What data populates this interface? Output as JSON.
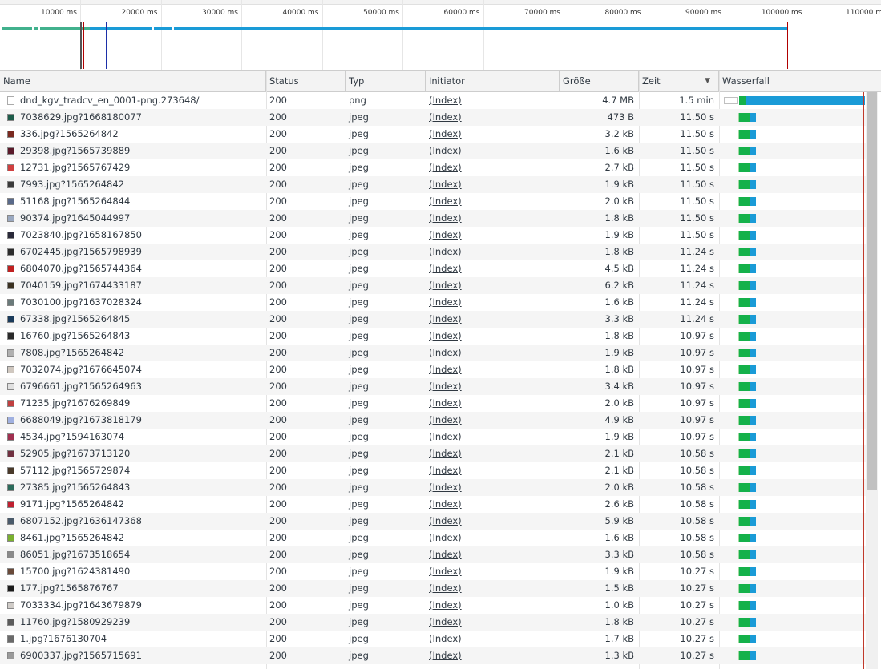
{
  "overview": {
    "ticks": [
      "10000 ms",
      "20000 ms",
      "30000 ms",
      "40000 ms",
      "50000 ms",
      "60000 ms",
      "70000 ms",
      "80000 ms",
      "90000 ms",
      "100000 ms",
      "110000 m"
    ]
  },
  "columns": {
    "name": "Name",
    "status": "Status",
    "type": "Typ",
    "initiator": "Initiator",
    "size": "Größe",
    "time": "Zeit",
    "waterfall": "Wasserfall",
    "sort_indicator": "▼"
  },
  "rows": [
    {
      "name": "dnd_kgv_tradcv_en_0001-png.273648/",
      "status": "200",
      "type": "png",
      "initiator": "(Index)",
      "size": "4.7 MB",
      "time": "1.5 min",
      "thumb": "#ffffff"
    },
    {
      "name": "7038629.jpg?1668180077",
      "status": "200",
      "type": "jpeg",
      "initiator": "(Index)",
      "size": "473 B",
      "time": "11.50 s",
      "thumb": "#1d5c4a"
    },
    {
      "name": "336.jpg?1565264842",
      "status": "200",
      "type": "jpeg",
      "initiator": "(Index)",
      "size": "3.2 kB",
      "time": "11.50 s",
      "thumb": "#7a2a20"
    },
    {
      "name": "29398.jpg?1565739889",
      "status": "200",
      "type": "jpeg",
      "initiator": "(Index)",
      "size": "1.6 kB",
      "time": "11.50 s",
      "thumb": "#5a1a2a"
    },
    {
      "name": "12731.jpg?1565767429",
      "status": "200",
      "type": "jpeg",
      "initiator": "(Index)",
      "size": "2.7 kB",
      "time": "11.50 s",
      "thumb": "#d04040"
    },
    {
      "name": "7993.jpg?1565264842",
      "status": "200",
      "type": "jpeg",
      "initiator": "(Index)",
      "size": "1.9 kB",
      "time": "11.50 s",
      "thumb": "#3a3a3a"
    },
    {
      "name": "51168.jpg?1565264844",
      "status": "200",
      "type": "jpeg",
      "initiator": "(Index)",
      "size": "2.0 kB",
      "time": "11.50 s",
      "thumb": "#5a6a8a"
    },
    {
      "name": "90374.jpg?1645044997",
      "status": "200",
      "type": "jpeg",
      "initiator": "(Index)",
      "size": "1.8 kB",
      "time": "11.50 s",
      "thumb": "#9aa8c0"
    },
    {
      "name": "7023840.jpg?1658167850",
      "status": "200",
      "type": "jpeg",
      "initiator": "(Index)",
      "size": "1.9 kB",
      "time": "11.50 s",
      "thumb": "#2a2a3a"
    },
    {
      "name": "6702445.jpg?1565798939",
      "status": "200",
      "type": "jpeg",
      "initiator": "(Index)",
      "size": "1.8 kB",
      "time": "11.24 s",
      "thumb": "#2a2a2a"
    },
    {
      "name": "6804070.jpg?1565744364",
      "status": "200",
      "type": "jpeg",
      "initiator": "(Index)",
      "size": "4.5 kB",
      "time": "11.24 s",
      "thumb": "#c02020"
    },
    {
      "name": "7040159.jpg?1674433187",
      "status": "200",
      "type": "jpeg",
      "initiator": "(Index)",
      "size": "6.2 kB",
      "time": "11.24 s",
      "thumb": "#3a3020"
    },
    {
      "name": "7030100.jpg?1637028324",
      "status": "200",
      "type": "jpeg",
      "initiator": "(Index)",
      "size": "1.6 kB",
      "time": "11.24 s",
      "thumb": "#6a7a7a"
    },
    {
      "name": "67338.jpg?1565264845",
      "status": "200",
      "type": "jpeg",
      "initiator": "(Index)",
      "size": "3.3 kB",
      "time": "11.24 s",
      "thumb": "#1a3a5a"
    },
    {
      "name": "16760.jpg?1565264843",
      "status": "200",
      "type": "jpeg",
      "initiator": "(Index)",
      "size": "1.8 kB",
      "time": "10.97 s",
      "thumb": "#2a2a2a"
    },
    {
      "name": "7808.jpg?1565264842",
      "status": "200",
      "type": "jpeg",
      "initiator": "(Index)",
      "size": "1.9 kB",
      "time": "10.97 s",
      "thumb": "#b0b0b0"
    },
    {
      "name": "7032074.jpg?1676645074",
      "status": "200",
      "type": "jpeg",
      "initiator": "(Index)",
      "size": "1.8 kB",
      "time": "10.97 s",
      "thumb": "#d0c8c0"
    },
    {
      "name": "6796661.jpg?1565264963",
      "status": "200",
      "type": "jpeg",
      "initiator": "(Index)",
      "size": "3.4 kB",
      "time": "10.97 s",
      "thumb": "#e0e0e0"
    },
    {
      "name": "71235.jpg?1676269849",
      "status": "200",
      "type": "jpeg",
      "initiator": "(Index)",
      "size": "2.0 kB",
      "time": "10.97 s",
      "thumb": "#c04040"
    },
    {
      "name": "6688049.jpg?1673818179",
      "status": "200",
      "type": "jpeg",
      "initiator": "(Index)",
      "size": "4.9 kB",
      "time": "10.97 s",
      "thumb": "#a0b0e0"
    },
    {
      "name": "4534.jpg?1594163074",
      "status": "200",
      "type": "jpeg",
      "initiator": "(Index)",
      "size": "1.9 kB",
      "time": "10.97 s",
      "thumb": "#a03050"
    },
    {
      "name": "52905.jpg?1673713120",
      "status": "200",
      "type": "jpeg",
      "initiator": "(Index)",
      "size": "2.1 kB",
      "time": "10.58 s",
      "thumb": "#703040"
    },
    {
      "name": "57112.jpg?1565729874",
      "status": "200",
      "type": "jpeg",
      "initiator": "(Index)",
      "size": "2.1 kB",
      "time": "10.58 s",
      "thumb": "#4a3a2a"
    },
    {
      "name": "27385.jpg?1565264843",
      "status": "200",
      "type": "jpeg",
      "initiator": "(Index)",
      "size": "2.0 kB",
      "time": "10.58 s",
      "thumb": "#2a6a5a"
    },
    {
      "name": "9171.jpg?1565264842",
      "status": "200",
      "type": "jpeg",
      "initiator": "(Index)",
      "size": "2.6 kB",
      "time": "10.58 s",
      "thumb": "#c02030"
    },
    {
      "name": "6807152.jpg?1636147368",
      "status": "200",
      "type": "jpeg",
      "initiator": "(Index)",
      "size": "5.9 kB",
      "time": "10.58 s",
      "thumb": "#4a5a6a"
    },
    {
      "name": "8461.jpg?1565264842",
      "status": "200",
      "type": "jpeg",
      "initiator": "(Index)",
      "size": "1.6 kB",
      "time": "10.58 s",
      "thumb": "#7ab030"
    },
    {
      "name": "86051.jpg?1673518654",
      "status": "200",
      "type": "jpeg",
      "initiator": "(Index)",
      "size": "3.3 kB",
      "time": "10.58 s",
      "thumb": "#8a8a8a"
    },
    {
      "name": "15700.jpg?1624381490",
      "status": "200",
      "type": "jpeg",
      "initiator": "(Index)",
      "size": "1.9 kB",
      "time": "10.27 s",
      "thumb": "#6a4a3a"
    },
    {
      "name": "177.jpg?1565876767",
      "status": "200",
      "type": "jpeg",
      "initiator": "(Index)",
      "size": "1.5 kB",
      "time": "10.27 s",
      "thumb": "#1a1a1a"
    },
    {
      "name": "7033334.jpg?1643679879",
      "status": "200",
      "type": "jpeg",
      "initiator": "(Index)",
      "size": "1.0 kB",
      "time": "10.27 s",
      "thumb": "#d0ccc8"
    },
    {
      "name": "11760.jpg?1580929239",
      "status": "200",
      "type": "jpeg",
      "initiator": "(Index)",
      "size": "1.8 kB",
      "time": "10.27 s",
      "thumb": "#5a5a5a"
    },
    {
      "name": "1.jpg?1676130704",
      "status": "200",
      "type": "jpeg",
      "initiator": "(Index)",
      "size": "1.7 kB",
      "time": "10.27 s",
      "thumb": "#6a6a6a"
    },
    {
      "name": "6900337.jpg?1565715691",
      "status": "200",
      "type": "jpeg",
      "initiator": "(Index)",
      "size": "1.3 kB",
      "time": "10.27 s",
      "thumb": "#9a9a9a"
    }
  ]
}
